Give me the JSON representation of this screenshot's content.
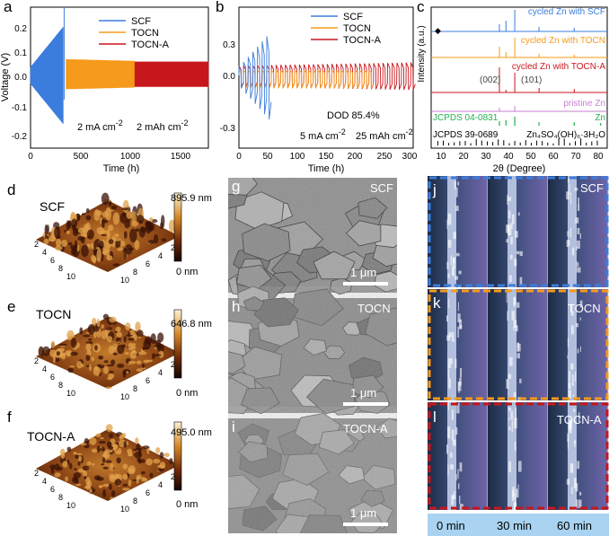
{
  "panels": {
    "a": {
      "label": "a",
      "ylabel": "Voltage (V)",
      "xlabel": "Time (h)",
      "xticks": [
        "0",
        "500",
        "1000",
        "1500"
      ],
      "yticks": [
        "0.2",
        "0.1",
        "0.0",
        "-0.1",
        "-0.2"
      ],
      "legend": [
        "SCF",
        "TOCN",
        "TOCN-A"
      ],
      "ann1": "2 mA cm",
      "ann2": "2 mAh cm",
      "sup": "-2"
    },
    "b": {
      "label": "b",
      "xlabel": "Time (h)",
      "xticks": [
        "0",
        "50",
        "100",
        "150",
        "200",
        "250",
        "300"
      ],
      "yticks": [
        "0.3",
        "0.0",
        "-0.3"
      ],
      "legend": [
        "SCF",
        "TOCN",
        "TOCN-A"
      ],
      "dod": "DOD 85.4%",
      "ann1": "5 mA cm",
      "ann2": "25 mAh cm",
      "sup": "-2"
    },
    "c": {
      "label": "c",
      "ylabel": "Intensity (a.u.)",
      "xlabel": "2θ (Degree)",
      "xticks": [
        "10",
        "20",
        "30",
        "40",
        "50",
        "60",
        "70",
        "80"
      ],
      "traces": [
        "cycled Zn with SCF",
        "cycled Zn with TOCN",
        "cycled Zn with TOCN-A",
        "pristine Zn"
      ],
      "peaks": [
        "(002)",
        "(101)"
      ],
      "ref1_left": "JCPDS 04-0831",
      "ref1_right": "Zn",
      "ref2_left": "JCPDS 39-0689",
      "ref2_right": "Zn₄SO₄(OH)₆·3H₂O",
      "marker": "◆"
    },
    "d": {
      "label": "d",
      "name": "SCF",
      "max": "895.9 nm",
      "min": "0 nm",
      "ax1": [
        "2",
        "4",
        "6",
        "8",
        "10"
      ],
      "ax2": [
        "2",
        "4",
        "6",
        "8",
        "10"
      ]
    },
    "e": {
      "label": "e",
      "name": "TOCN",
      "max": "646.8 nm",
      "min": "0 nm",
      "ax1": [
        "2",
        "4",
        "6",
        "8",
        "10"
      ],
      "ax2": [
        "2",
        "4",
        "6",
        "8",
        "10"
      ]
    },
    "f": {
      "label": "f",
      "name": "TOCN-A",
      "max": "495.0 nm",
      "min": "0 nm",
      "ax1": [
        "2",
        "4",
        "6",
        "8",
        "10"
      ],
      "ax2": [
        "2",
        "4",
        "6",
        "8",
        "10"
      ]
    },
    "g": {
      "label": "g",
      "name": "SCF",
      "scale": "1 μm"
    },
    "h": {
      "label": "h",
      "name": "TOCN",
      "scale": "1 μm"
    },
    "i": {
      "label": "i",
      "name": "TOCN-A",
      "scale": "1 μm"
    },
    "j": {
      "label": "j",
      "name": "SCF"
    },
    "k": {
      "label": "k",
      "name": "TOCN"
    },
    "l": {
      "label": "l",
      "name": "TOCN-A"
    },
    "times": [
      "0 min",
      "30 min",
      "60 min"
    ]
  },
  "colors": {
    "scf": "#3b7ddd",
    "tocn": "#f59a1b",
    "tocna": "#c8161d",
    "green": "#22b24c",
    "timebar": "#a9d3f0"
  }
}
